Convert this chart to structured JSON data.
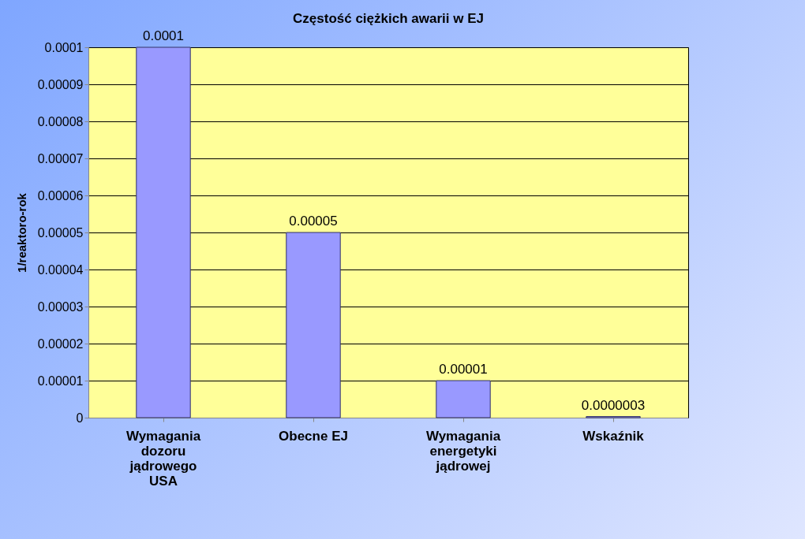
{
  "chart_data": {
    "type": "bar",
    "title": "Częstość ciężkich awarii w EJ",
    "ylabel": "1/reaktoro-rok",
    "categories": [
      "Wymagania dozoru jądrowego USA",
      "Obecne EJ",
      "Wymagania energetyki jądrowej",
      "Wskaźnik"
    ],
    "values": [
      0.0001,
      5e-05,
      1e-05,
      3e-07
    ],
    "value_labels": [
      "0.0001",
      "0.00005",
      "0.00001",
      "0.0000003"
    ],
    "color": "#9999ff",
    "ylim": [
      0,
      0.0001
    ],
    "yticks": [
      0,
      {
        "value": 1e-05,
        "label": "0.00001"
      },
      {
        "value": 2e-05,
        "label": "0.00002"
      },
      {
        "value": 3e-05,
        "label": "0.00003"
      },
      {
        "value": 4e-05,
        "label": "0.00004"
      },
      {
        "value": 5e-05,
        "label": "0.00005"
      },
      {
        "value": 6e-05,
        "label": "0.00006"
      },
      {
        "value": 7e-05,
        "label": "0.00007"
      },
      {
        "value": 8e-05,
        "label": "0.00008"
      },
      {
        "value": 9e-05,
        "label": "0.00009"
      },
      0.0001
    ],
    "grid": "y"
  }
}
